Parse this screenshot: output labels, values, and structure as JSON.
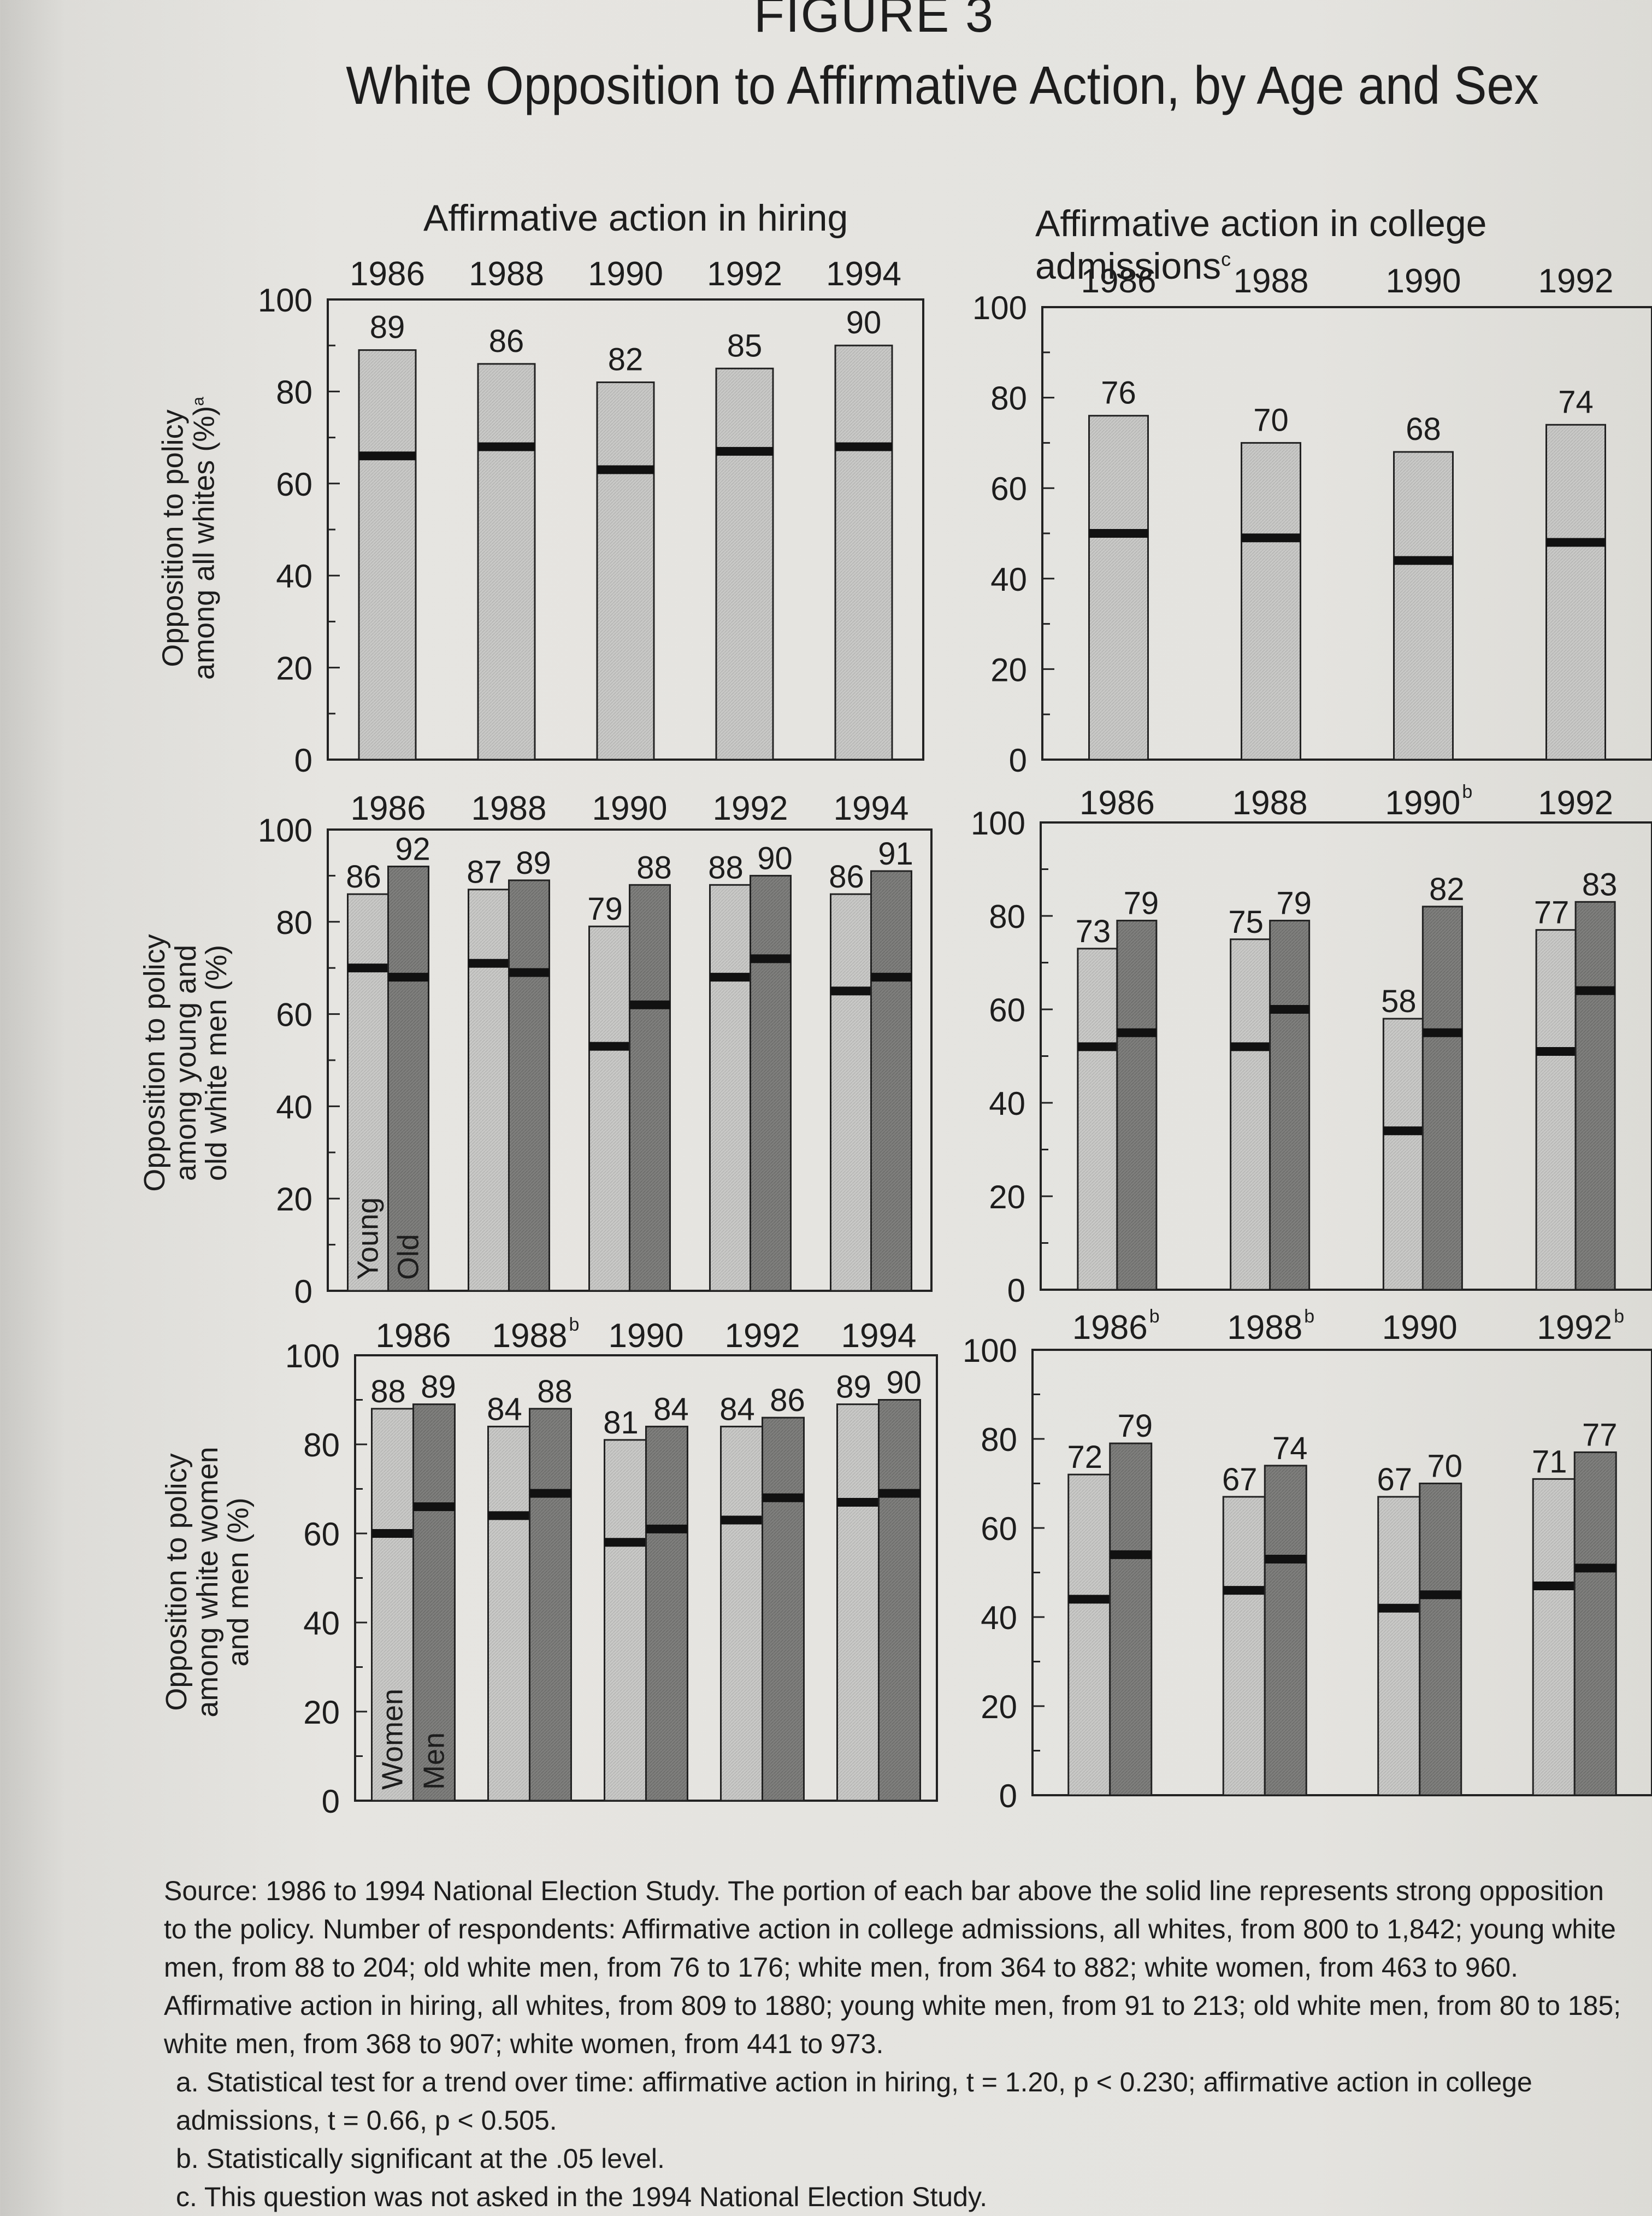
{
  "figure": {
    "number": "FIGURE 3",
    "title": "White Opposition to Affirmative Action, by Age and Sex"
  },
  "columns": {
    "hiring": "Affirmative action in hiring",
    "college": "Affirmative action in college admissions",
    "college_note": "c"
  },
  "rows": {
    "all_whites": {
      "line1": "Opposition to policy",
      "line2": "among all whites (%)",
      "note": "a"
    },
    "young_old": {
      "line1": "Opposition to policy",
      "line2": "among young and",
      "line3": "old white men (%)"
    },
    "women_men": {
      "line1": "Opposition to policy",
      "line2": "among white women",
      "line3": "and men (%)"
    }
  },
  "y_ticks": [
    "0",
    "20",
    "40",
    "60",
    "80",
    "100"
  ],
  "colors": {
    "light_bar": "#c6c6c4",
    "dark_bar": "#7d7d7b",
    "strong_line": "#111111"
  },
  "chart_data": [
    {
      "type": "bar",
      "panel": "hiring-all-whites",
      "categories": [
        "1986",
        "1988",
        "1990",
        "1992",
        "1994"
      ],
      "category_notes": [
        "",
        "",
        "",
        "",
        ""
      ],
      "ylim": [
        0,
        100
      ],
      "series": [
        {
          "values": [
            89,
            86,
            82,
            85,
            90
          ],
          "strong": [
            66,
            68,
            63,
            67,
            68
          ],
          "labels": [
            "89",
            "86",
            "82",
            "85",
            "90"
          ],
          "group_label": ""
        }
      ]
    },
    {
      "type": "bar",
      "panel": "college-all-whites",
      "categories": [
        "1986",
        "1988",
        "1990",
        "1992"
      ],
      "category_notes": [
        "",
        "",
        "",
        ""
      ],
      "ylim": [
        0,
        100
      ],
      "series": [
        {
          "values": [
            76,
            70,
            68,
            74
          ],
          "strong": [
            50,
            49,
            44,
            48
          ],
          "labels": [
            "76",
            "70",
            "68",
            "74"
          ],
          "group_label": ""
        }
      ]
    },
    {
      "type": "bar",
      "panel": "hiring-young-old",
      "categories": [
        "1986",
        "1988",
        "1990",
        "1992",
        "1994"
      ],
      "category_notes": [
        "",
        "",
        "",
        "",
        ""
      ],
      "ylim": [
        0,
        100
      ],
      "series": [
        {
          "name": "Young",
          "values": [
            86,
            87,
            79,
            88,
            86
          ],
          "strong": [
            70,
            71,
            53,
            68,
            65
          ],
          "labels": [
            "86",
            "87",
            "79",
            "88",
            "86"
          ],
          "group_label": "Young"
        },
        {
          "name": "Old",
          "values": [
            92,
            89,
            88,
            90,
            91
          ],
          "strong": [
            68,
            69,
            62,
            72,
            68
          ],
          "labels": [
            "92",
            "89",
            "88",
            "90",
            "91"
          ],
          "group_label": "Old"
        }
      ]
    },
    {
      "type": "bar",
      "panel": "college-young-old",
      "categories": [
        "1986",
        "1988",
        "1990",
        "1992"
      ],
      "category_notes": [
        "",
        "",
        "b",
        ""
      ],
      "ylim": [
        0,
        100
      ],
      "series": [
        {
          "name": "Young",
          "values": [
            73,
            75,
            58,
            77
          ],
          "strong": [
            52,
            52,
            34,
            51
          ],
          "labels": [
            "73",
            "75",
            "58",
            "77"
          ],
          "group_label": ""
        },
        {
          "name": "Old",
          "values": [
            79,
            79,
            82,
            83
          ],
          "strong": [
            55,
            60,
            55,
            64
          ],
          "labels": [
            "79",
            "79",
            "82",
            "83"
          ],
          "group_label": ""
        }
      ]
    },
    {
      "type": "bar",
      "panel": "hiring-women-men",
      "categories": [
        "1986",
        "1988",
        "1990",
        "1992",
        "1994"
      ],
      "category_notes": [
        "",
        "b",
        "",
        "",
        ""
      ],
      "ylim": [
        0,
        100
      ],
      "series": [
        {
          "name": "Women",
          "values": [
            88,
            84,
            81,
            84,
            89
          ],
          "strong": [
            60,
            64,
            58,
            63,
            67
          ],
          "labels": [
            "88",
            "84",
            "81",
            "84",
            "89"
          ],
          "group_label": "Women"
        },
        {
          "name": "Men",
          "values": [
            89,
            88,
            84,
            86,
            90
          ],
          "strong": [
            66,
            69,
            61,
            68,
            69
          ],
          "labels": [
            "89",
            "88",
            "84",
            "86",
            "90"
          ],
          "group_label": "Men"
        }
      ]
    },
    {
      "type": "bar",
      "panel": "college-women-men",
      "categories": [
        "1986",
        "1988",
        "1990",
        "1992"
      ],
      "category_notes": [
        "b",
        "b",
        "",
        "b"
      ],
      "ylim": [
        0,
        100
      ],
      "series": [
        {
          "name": "Women",
          "values": [
            72,
            67,
            67,
            71
          ],
          "strong": [
            44,
            46,
            42,
            47
          ],
          "labels": [
            "72",
            "67",
            "67",
            "71"
          ],
          "group_label": ""
        },
        {
          "name": "Men",
          "values": [
            79,
            74,
            70,
            77
          ],
          "strong": [
            54,
            53,
            45,
            51
          ],
          "labels": [
            "79",
            "74",
            "70",
            "77"
          ],
          "group_label": ""
        }
      ]
    }
  ],
  "source": {
    "main": "Source: 1986 to 1994 National Election Study. The portion of each bar above the solid line represents strong opposition to the policy. Number of respondents: Affirmative action in college admissions, all whites, from 800 to 1,842; young white men, from 88 to 204; old white men, from 76 to 176; white men, from 364 to 882; white women, from 463 to 960. Affirmative action in hiring, all whites, from 809 to 1880; young white men, from 91 to 213; old white men, from 80 to 185; white men, from 368 to 907; white women, from 441 to 973.",
    "note_a": "a. Statistical test for a trend over time: affirmative action in hiring, t = 1.20, p < 0.230; affirmative action in college admissions, t = 0.66, p < 0.505.",
    "note_b": "b. Statistically significant at the .05 level.",
    "note_c": "c. This question was not asked in the 1994 National Election Study."
  }
}
